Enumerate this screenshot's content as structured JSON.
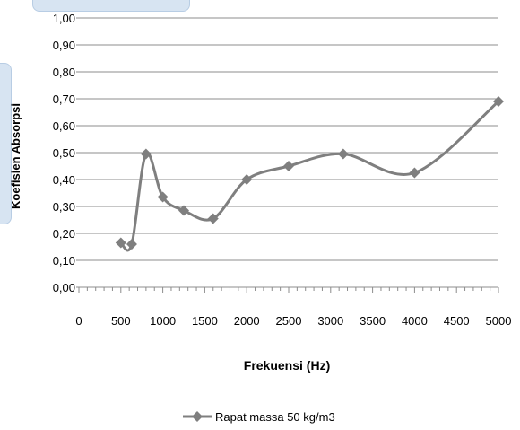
{
  "chart_data": {
    "type": "line",
    "title": "",
    "xlabel": "Frekuensi (Hz)",
    "ylabel": "Koefisien Absorpsi",
    "x_ticks": [
      "0",
      "500",
      "1000",
      "1500",
      "2000",
      "2500",
      "3000",
      "3500",
      "4000",
      "4500",
      "5000"
    ],
    "y_ticks": [
      "0,00",
      "0,10",
      "0,20",
      "0,30",
      "0,40",
      "0,50",
      "0,60",
      "0,70",
      "0,80",
      "0,90",
      "1,00"
    ],
    "xlim": [
      0,
      5000
    ],
    "ylim": [
      0,
      1.0
    ],
    "grid": "horizontal",
    "legend_position": "bottom",
    "series": [
      {
        "name": "Rapat massa 50 kg/m3",
        "color": "#7f7f7f",
        "marker": "diamond",
        "x": [
          500,
          630,
          800,
          1000,
          1250,
          1600,
          2000,
          2500,
          3150,
          4000,
          5000
        ],
        "y": [
          0.165,
          0.16,
          0.495,
          0.335,
          0.285,
          0.255,
          0.4,
          0.45,
          0.495,
          0.425,
          0.69
        ]
      }
    ]
  }
}
